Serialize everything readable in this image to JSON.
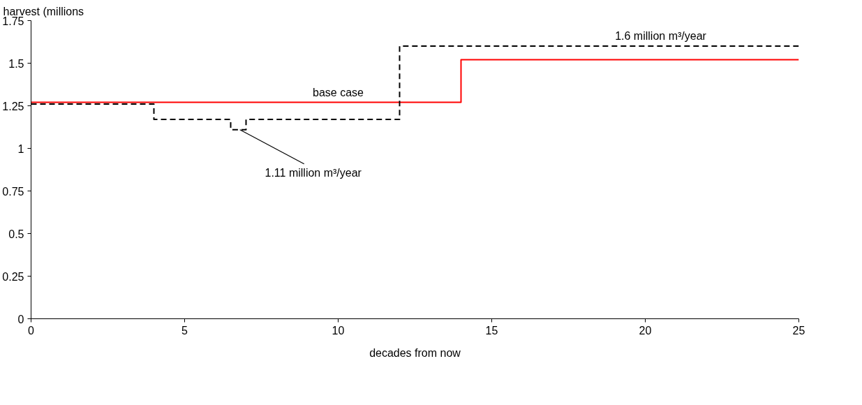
{
  "chart_data": {
    "type": "step",
    "xlabel": "decades from now",
    "ylabel": "harvest (millions",
    "xlim": [
      0,
      25
    ],
    "xticks": [
      0,
      5,
      10,
      15,
      20,
      25
    ],
    "ylim": [
      0,
      1.75
    ],
    "yticks": [
      0,
      0.25,
      0.5,
      0.75,
      1,
      1.25,
      1.5,
      1.75
    ],
    "grid": false,
    "series": [
      {
        "color": "#ff0000",
        "line_style": "solid",
        "x": [
          0,
          14,
          25
        ],
        "values": [
          1.27,
          1.52,
          1.52
        ]
      },
      {
        "color": "#000000",
        "line_style": "dashed",
        "x": [
          0,
          4,
          6.5,
          7,
          12,
          25
        ],
        "values": [
          1.26,
          1.17,
          1.11,
          1.17,
          1.6,
          1.6
        ]
      }
    ],
    "annotations": [
      {
        "text": "base case",
        "x": 10,
        "y": 1.27
      },
      {
        "text": "1.6 million m³/year",
        "x": 20.5,
        "y": 1.6
      },
      {
        "text": "1.11 million m³/year",
        "x": 6.8,
        "y": 1.11
      }
    ]
  }
}
